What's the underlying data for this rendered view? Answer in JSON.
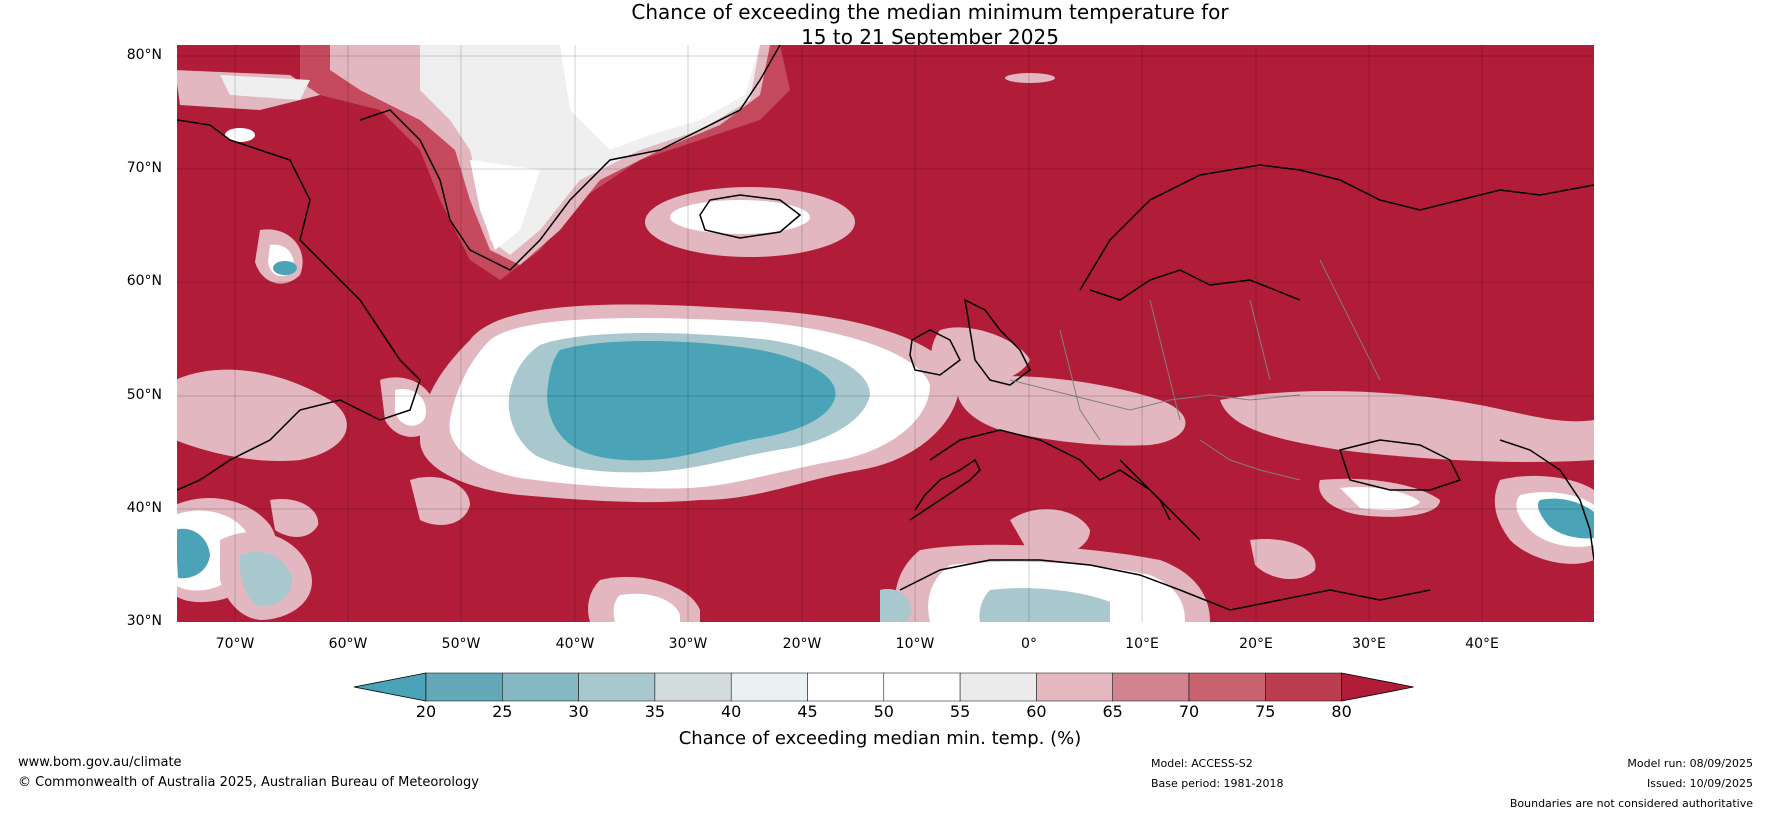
{
  "title": {
    "line1": "Chance of exceeding the median minimum temperature for",
    "line2": "15 to 21 September 2025"
  },
  "map": {
    "lat_labels": [
      "80°N",
      "70°N",
      "60°N",
      "50°N",
      "40°N",
      "30°N"
    ],
    "lon_labels": [
      "70°W",
      "60°W",
      "50°W",
      "40°W",
      "30°W",
      "20°W",
      "10°W",
      "0°",
      "10°E",
      "20°E",
      "30°E",
      "40°E"
    ],
    "colors": {
      "high": "#b11c38",
      "mid_high": "#c64a5e",
      "pink": "#e2b7bf",
      "light": "#efefef",
      "white": "#ffffff",
      "teal": "#4aa3b6",
      "teal_light": "#8bbdc9",
      "coast": "#000000",
      "border": "#808080"
    }
  },
  "colorbar": {
    "ticks": [
      "20",
      "25",
      "30",
      "35",
      "40",
      "45",
      "50",
      "55",
      "60",
      "65",
      "70",
      "75",
      "80"
    ],
    "colors": [
      "#4aa3b6",
      "#64a8b8",
      "#86b8c4",
      "#a8c8cd",
      "#d2dcdc",
      "#e9f1f3",
      "#ffffff",
      "#ffffff",
      "#ecebec",
      "#e3b8bf",
      "#d1838f",
      "#c6636f",
      "#bd3d50",
      "#b11c38"
    ],
    "label": "Chance of exceeding median min. temp. (%)"
  },
  "footer": {
    "website": "www.bom.gov.au/climate",
    "copyright": "© Commonwealth of Australia 2025, Australian Bureau of Meteorology",
    "model": "Model: ACCESS-S2",
    "base_period": "Base period: 1981-2018",
    "model_run": "Model run: 08/09/2025",
    "issued": "Issued: 10/09/2025",
    "disclaimer": "Boundaries are not considered authoritative"
  }
}
